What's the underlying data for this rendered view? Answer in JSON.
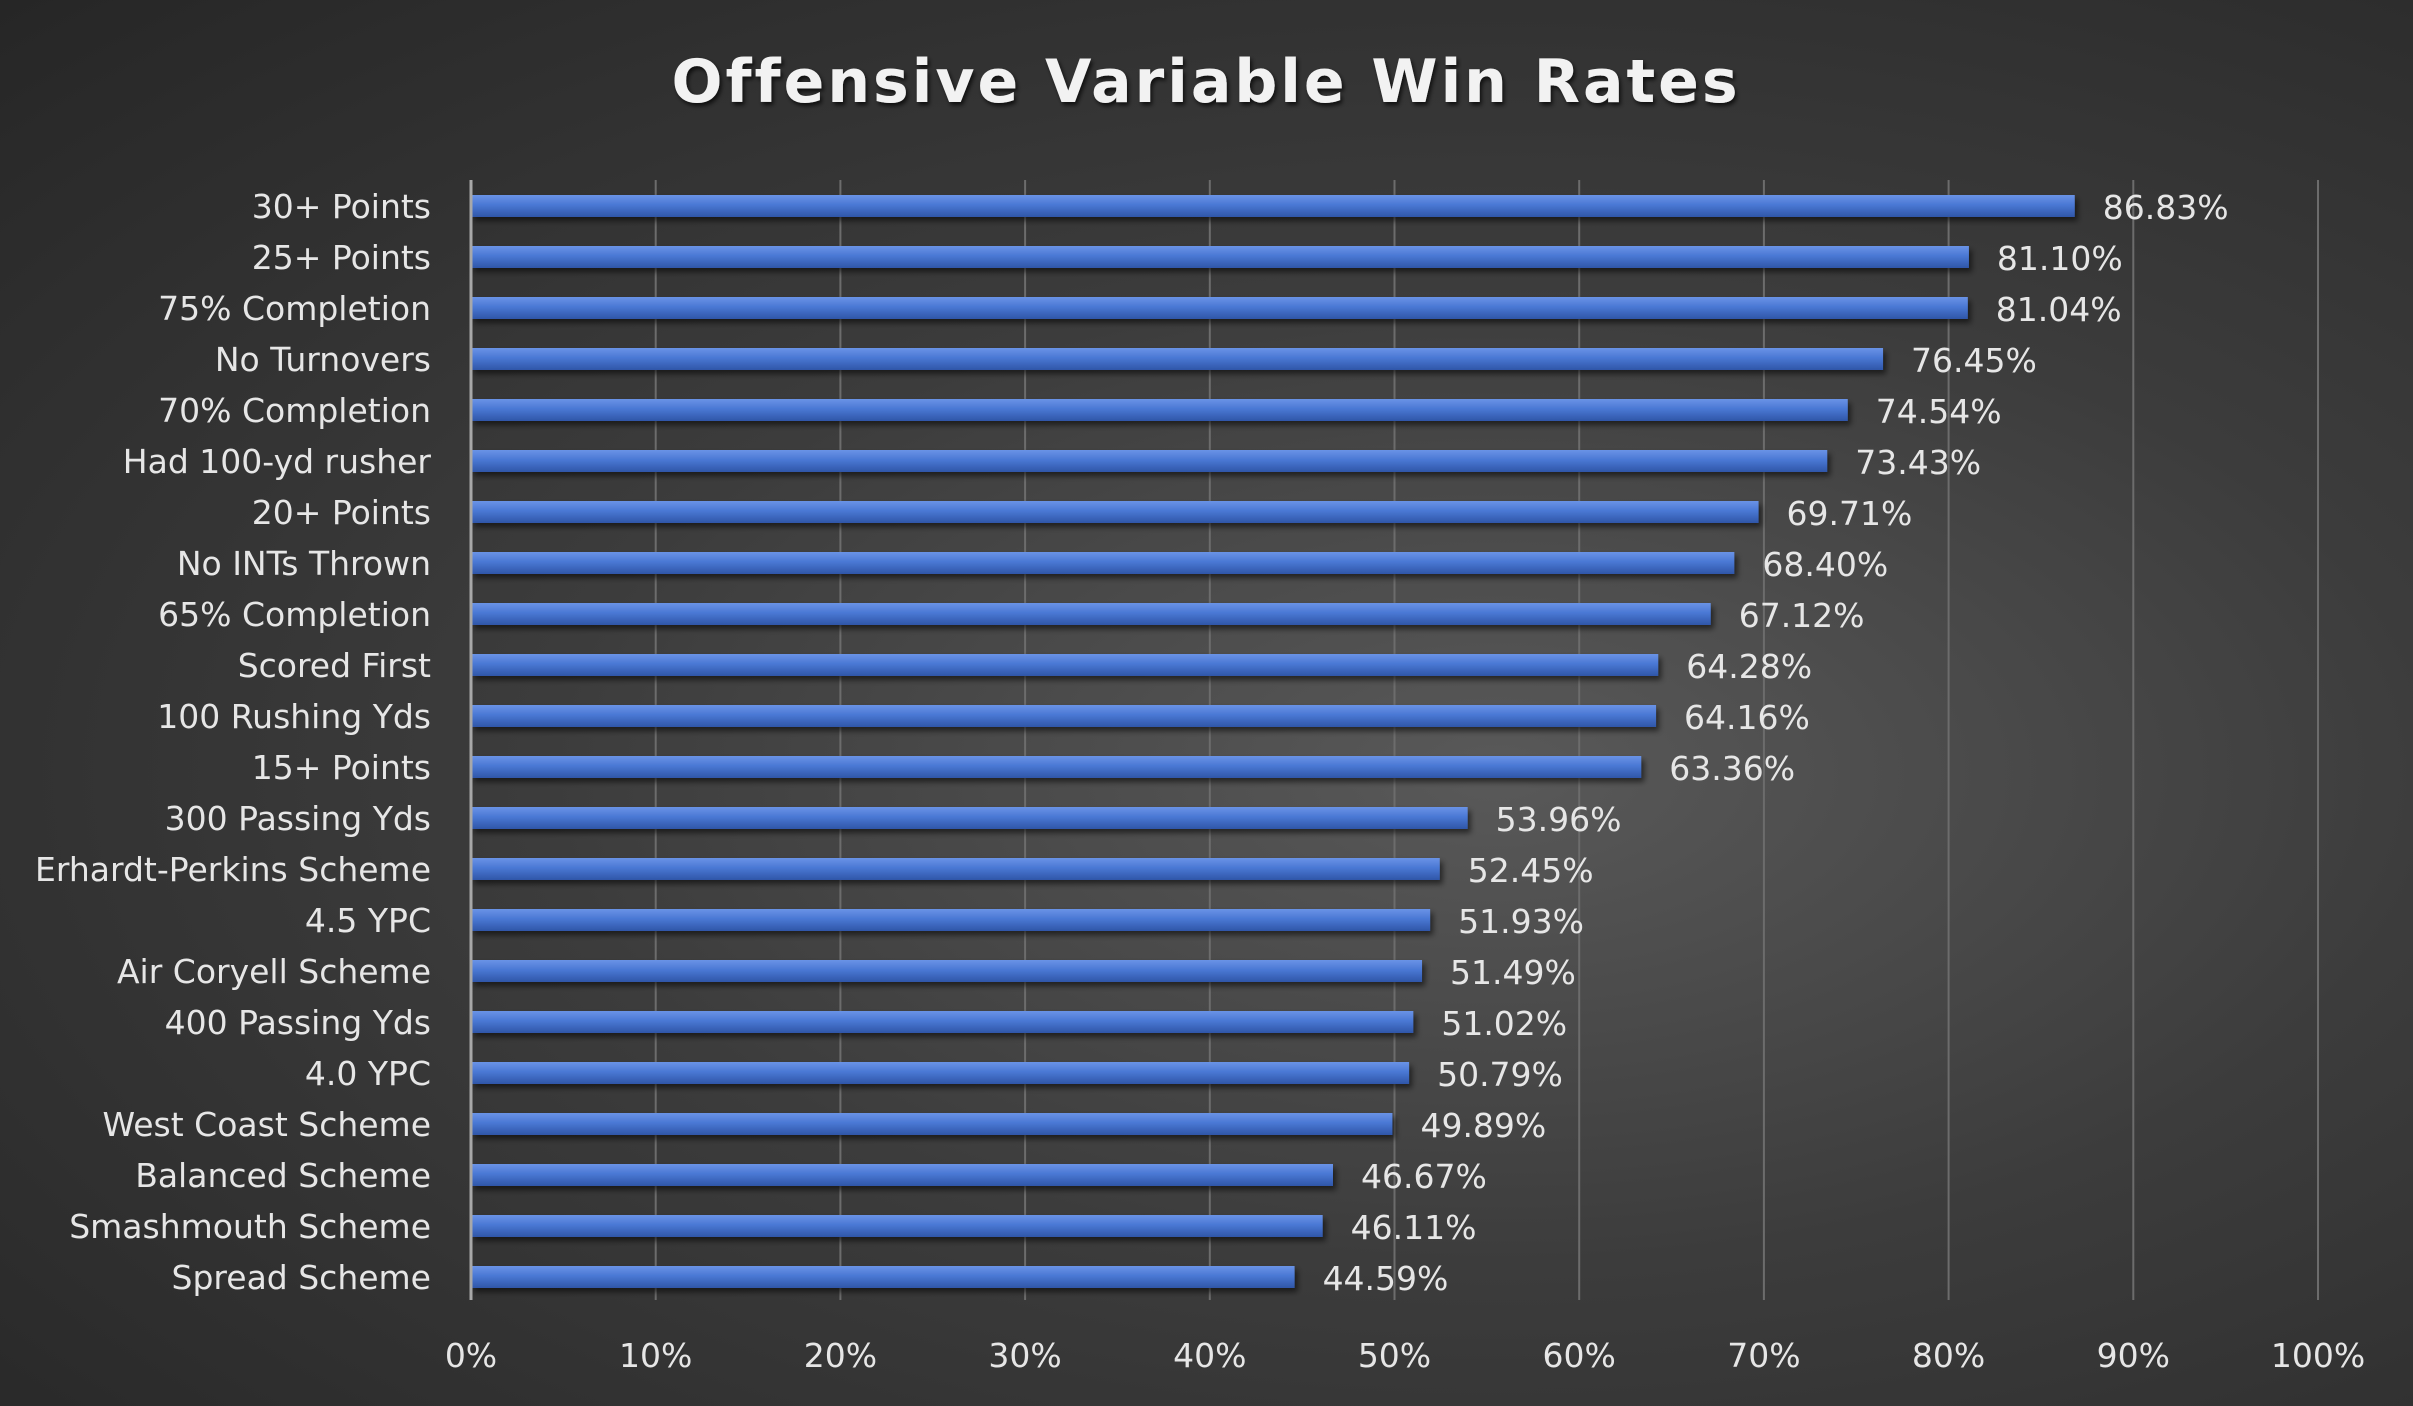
{
  "chart_data": {
    "type": "bar",
    "orientation": "horizontal",
    "title": "Offensive Variable Win Rates",
    "categories": [
      "30+ Points",
      "25+ Points",
      "75% Completion",
      "No Turnovers",
      "70% Completion",
      "Had 100-yd rusher",
      "20+ Points",
      "No INTs Thrown",
      "65% Completion",
      "Scored First",
      "100 Rushing Yds",
      "15+ Points",
      "300 Passing Yds",
      "Erhardt-Perkins Scheme",
      "4.5 YPC",
      "Air Coryell Scheme",
      "400 Passing Yds",
      "4.0 YPC",
      "West Coast Scheme",
      "Balanced Scheme",
      "Smashmouth Scheme",
      "Spread Scheme"
    ],
    "values": [
      86.83,
      81.1,
      81.04,
      76.45,
      74.54,
      73.43,
      69.71,
      68.4,
      67.12,
      64.28,
      64.16,
      63.36,
      53.96,
      52.45,
      51.93,
      51.49,
      51.02,
      50.79,
      49.89,
      46.67,
      46.11,
      44.59
    ],
    "value_labels": [
      "86.83%",
      "81.10%",
      "81.04%",
      "76.45%",
      "74.54%",
      "73.43%",
      "69.71%",
      "68.40%",
      "67.12%",
      "64.28%",
      "64.16%",
      "63.36%",
      "53.96%",
      "52.45%",
      "51.93%",
      "51.49%",
      "51.02%",
      "50.79%",
      "49.89%",
      "46.67%",
      "46.11%",
      "44.59%"
    ],
    "xlim": [
      0,
      100
    ],
    "x_ticks": [
      0,
      10,
      20,
      30,
      40,
      50,
      60,
      70,
      80,
      90,
      100
    ],
    "x_tick_labels": [
      "0%",
      "10%",
      "20%",
      "30%",
      "40%",
      "50%",
      "60%",
      "70%",
      "80%",
      "90%",
      "100%"
    ],
    "grid": true,
    "legend": "none",
    "bar_color": "#4472c4"
  }
}
